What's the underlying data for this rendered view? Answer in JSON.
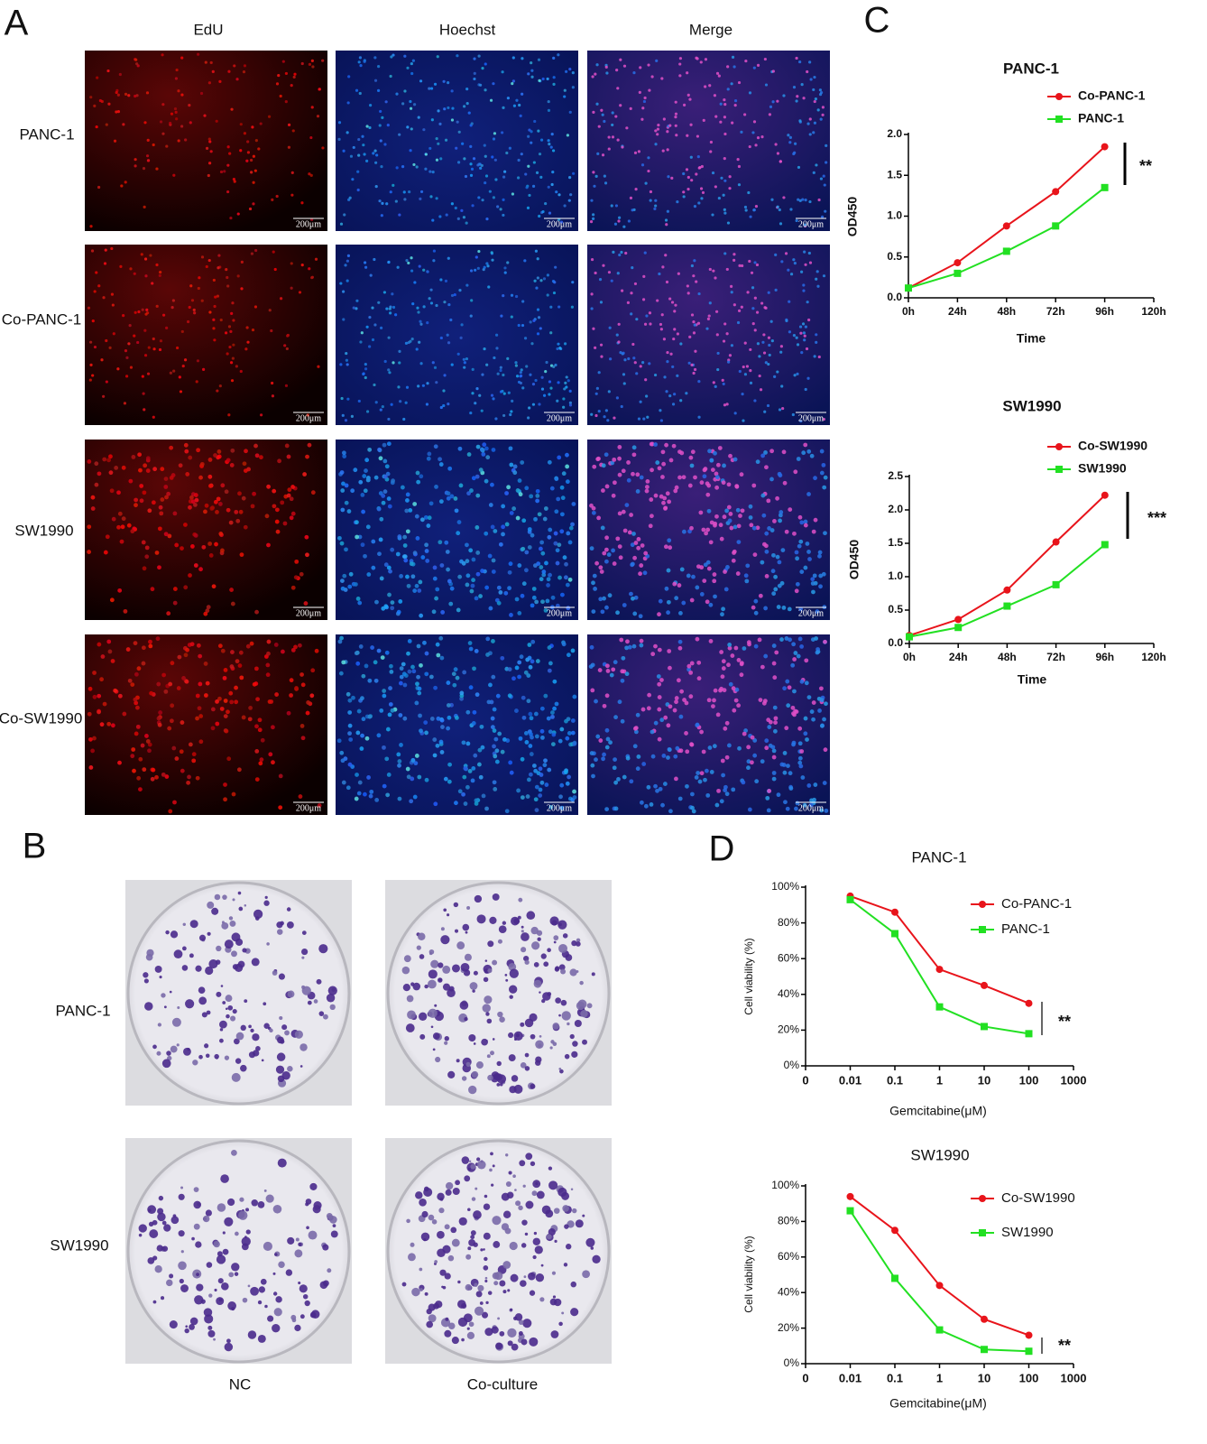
{
  "panels": {
    "A": {
      "label": "A",
      "columns": [
        "EdU",
        "Hoechst",
        "Merge"
      ],
      "rows": [
        "PANC-1",
        "Co-PANC-1",
        "SW1990",
        "Co-SW1990"
      ],
      "scale_bar": "200μm"
    },
    "B": {
      "label": "B",
      "rows": [
        "PANC-1",
        "SW1990"
      ],
      "columns": [
        "NC",
        "Co-culture"
      ]
    },
    "C": {
      "label": "C"
    },
    "D": {
      "label": "D"
    }
  },
  "chart_data": [
    {
      "type": "line",
      "title": "PANC-1",
      "x_label": "Time",
      "y_label": "OD450",
      "x": [
        0,
        24,
        48,
        72,
        96
      ],
      "xlim": [
        0,
        120
      ],
      "xticks": [
        {
          "value": 0,
          "label": "0h"
        },
        {
          "value": 24,
          "label": "24h"
        },
        {
          "value": 48,
          "label": "48h"
        },
        {
          "value": 72,
          "label": "72h"
        },
        {
          "value": 96,
          "label": "96h"
        },
        {
          "value": 120,
          "label": "120h"
        }
      ],
      "ylim": [
        0,
        2
      ],
      "yticks": [
        {
          "value": 0,
          "label": "0.0"
        },
        0.5,
        {
          "value": 1,
          "label": "1.0"
        },
        1.5,
        {
          "value": 2,
          "label": "2.0"
        }
      ],
      "series": [
        {
          "name": "Co-PANC-1",
          "color": "#e8141b",
          "values": [
            0.12,
            0.43,
            0.88,
            1.3,
            1.85
          ]
        },
        {
          "name": "PANC-1",
          "color": "#22e022",
          "values": [
            0.12,
            0.3,
            0.57,
            0.88,
            1.35
          ]
        }
      ],
      "annotation": "**",
      "legend": "upper right"
    },
    {
      "type": "line",
      "title": "SW1990",
      "x_label": "Time",
      "y_label": "OD450",
      "x": [
        0,
        24,
        48,
        72,
        96
      ],
      "xlim": [
        0,
        120
      ],
      "xticks": [
        {
          "value": 0,
          "label": "0h"
        },
        {
          "value": 24,
          "label": "24h"
        },
        {
          "value": 48,
          "label": "48h"
        },
        {
          "value": 72,
          "label": "72h"
        },
        {
          "value": 96,
          "label": "96h"
        },
        {
          "value": 120,
          "label": "120h"
        }
      ],
      "ylim": [
        0,
        2.5
      ],
      "yticks": [
        {
          "value": 0,
          "label": "0.0"
        },
        0.5,
        {
          "value": 1,
          "label": "1.0"
        },
        1.5,
        {
          "value": 2,
          "label": "2.0"
        },
        2.5
      ],
      "series": [
        {
          "name": "Co-SW1990",
          "color": "#e8141b",
          "values": [
            0.12,
            0.36,
            0.8,
            1.52,
            2.22
          ]
        },
        {
          "name": "SW1990",
          "color": "#22e022",
          "values": [
            0.1,
            0.24,
            0.56,
            0.88,
            1.48
          ]
        }
      ],
      "annotation": "***",
      "legend": "upper right"
    },
    {
      "type": "line",
      "title": "PANC-1",
      "x_label": "Gemcitabine(μM)",
      "y_label": "Cell viability (%)",
      "categories": [
        "0",
        "0.01",
        "0.1",
        "1",
        "10",
        "100",
        "1000"
      ],
      "ylim": [
        0,
        100
      ],
      "yticks": [
        {
          "value": 0,
          "label": "0%"
        },
        {
          "value": 20,
          "label": "20%"
        },
        {
          "value": 40,
          "label": "40%"
        },
        {
          "value": 60,
          "label": "60%"
        },
        {
          "value": 80,
          "label": "80%"
        },
        {
          "value": 100,
          "label": "100%"
        }
      ],
      "series": [
        {
          "name": "Co-PANC-1",
          "color": "#e8141b",
          "values": [
            null,
            95,
            86,
            54,
            45,
            35,
            null
          ]
        },
        {
          "name": "PANC-1",
          "color": "#22e022",
          "values": [
            null,
            93,
            74,
            33,
            22,
            18,
            null
          ]
        }
      ],
      "annotation": "**",
      "legend": "upper right"
    },
    {
      "type": "line",
      "title": "SW1990",
      "x_label": "Gemcitabine(μM)",
      "y_label": "Cell viability (%)",
      "categories": [
        "0",
        "0.01",
        "0.1",
        "1",
        "10",
        "100",
        "1000"
      ],
      "ylim": [
        0,
        100
      ],
      "yticks": [
        {
          "value": 0,
          "label": "0%"
        },
        {
          "value": 20,
          "label": "20%"
        },
        {
          "value": 40,
          "label": "40%"
        },
        {
          "value": 60,
          "label": "60%"
        },
        {
          "value": 80,
          "label": "80%"
        },
        {
          "value": 100,
          "label": "100%"
        }
      ],
      "series": [
        {
          "name": "Co-SW1990",
          "color": "#e8141b",
          "values": [
            null,
            94,
            75,
            44,
            25,
            16,
            null
          ]
        },
        {
          "name": "SW1990",
          "color": "#22e022",
          "values": [
            null,
            86,
            48,
            19,
            8,
            7,
            null
          ]
        }
      ],
      "annotation": "**",
      "legend": "upper right"
    }
  ]
}
